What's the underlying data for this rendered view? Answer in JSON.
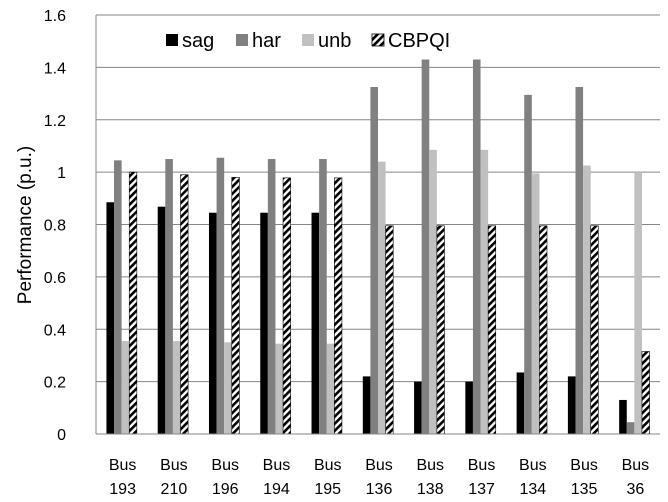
{
  "chart_data": {
    "type": "bar",
    "title": "",
    "xlabel": "",
    "ylabel": "Performance (p.u.)",
    "ylim": [
      0,
      1.6
    ],
    "yticks": [
      "0",
      "0.2",
      "0.4",
      "0.6",
      "0.8",
      "1",
      "1.2",
      "1.4",
      "1.6"
    ],
    "grid": "horizontal major gridlines",
    "legend_position": "top-center",
    "categories": [
      [
        "Bus",
        "193"
      ],
      [
        "Bus",
        "210"
      ],
      [
        "Bus",
        "196"
      ],
      [
        "Bus",
        "194"
      ],
      [
        "Bus",
        "195"
      ],
      [
        "Bus",
        "136"
      ],
      [
        "Bus",
        "138"
      ],
      [
        "Bus",
        "137"
      ],
      [
        "Bus",
        "134"
      ],
      [
        "Bus",
        "135"
      ],
      [
        "Bus",
        "36"
      ]
    ],
    "series": [
      {
        "name": "sag",
        "style": "solid-black",
        "values": [
          0.885,
          0.868,
          0.845,
          0.845,
          0.845,
          0.22,
          0.2,
          0.2,
          0.235,
          0.22,
          0.13
        ]
      },
      {
        "name": "har",
        "style": "solid-dark-gray",
        "values": [
          1.045,
          1.05,
          1.055,
          1.05,
          1.05,
          1.325,
          1.43,
          1.43,
          1.295,
          1.325,
          0.045
        ]
      },
      {
        "name": "unb",
        "style": "solid-light-gray",
        "values": [
          0.355,
          0.355,
          0.35,
          0.345,
          0.345,
          1.04,
          1.085,
          1.085,
          0.995,
          1.025,
          1.0
        ]
      },
      {
        "name": "CBPQI",
        "style": "diagonal-hatch",
        "values": [
          1.0,
          0.99,
          0.98,
          0.978,
          0.978,
          0.795,
          0.795,
          0.795,
          0.795,
          0.795,
          0.315
        ]
      }
    ],
    "colors": {
      "sag": "#000000",
      "har": "#808080",
      "unb": "#c0c0c0",
      "hatch_fg": "#000000",
      "hatch_bg": "#ffffff",
      "gridline": "#868686",
      "axis": "#868686"
    }
  }
}
